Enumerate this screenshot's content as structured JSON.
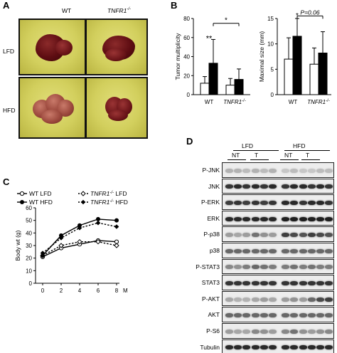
{
  "panel_a": {
    "letter": "A",
    "col_labels": [
      "WT",
      "TNFR1"
    ],
    "col_label_sup": "-/-",
    "row_labels": [
      "LFD",
      "HFD"
    ]
  },
  "panel_b": {
    "letter": "B",
    "chart_data": [
      {
        "type": "bar",
        "categories": [
          "WT",
          "TNFR1-/-"
        ],
        "ylabel": "Tumor multiplicity",
        "ylim": [
          0,
          80
        ],
        "yticks": [
          0,
          20,
          40,
          60,
          80
        ],
        "series": [
          {
            "values": [
              12,
              10
            ],
            "errors": [
              7,
              7
            ],
            "fill": "white"
          },
          {
            "values": [
              33,
              16
            ],
            "errors": [
              25,
              11
            ],
            "fill": "black"
          }
        ],
        "annotations": [
          "**",
          "*"
        ]
      },
      {
        "type": "bar",
        "categories": [
          "WT",
          "TNFR1-/-"
        ],
        "ylabel": "Maximal size (mm)",
        "ylim": [
          0,
          15
        ],
        "yticks": [
          0,
          5,
          10,
          15
        ],
        "series": [
          {
            "values": [
              7,
              6
            ],
            "errors": [
              4.2,
              3.2
            ],
            "fill": "white"
          },
          {
            "values": [
              11.5,
              8.2
            ],
            "errors": [
              3.5,
              4.2
            ],
            "fill": "black"
          }
        ],
        "annotations": [
          "*",
          "P=0.06"
        ]
      }
    ]
  },
  "panel_c": {
    "letter": "C",
    "chart_data": {
      "type": "line",
      "x": [
        0,
        2,
        4,
        6,
        8
      ],
      "xlabel_suffix": "M",
      "ylabel": "Body wt (g)",
      "ylim": [
        0,
        60
      ],
      "yticks": [
        0,
        10,
        20,
        30,
        40,
        50,
        60
      ],
      "series": [
        {
          "name": "WT LFD",
          "values": [
            21,
            28,
            31,
            34,
            33
          ],
          "marker": "open-circle",
          "line": "solid"
        },
        {
          "name": "TNFR1-/- LFD",
          "values": [
            22,
            30,
            33,
            33,
            30
          ],
          "marker": "open-diamond",
          "line": "dashed"
        },
        {
          "name": "WT HFD",
          "values": [
            22,
            38,
            46,
            51,
            50
          ],
          "marker": "filled-circle",
          "line": "solid"
        },
        {
          "name": "TNFR1-/- HFD",
          "values": [
            24,
            36,
            44,
            48,
            45
          ],
          "marker": "filled-diamond",
          "line": "dashed"
        }
      ],
      "legend": [
        "WT LFD",
        "TNFR1",
        "-/-",
        " LFD",
        "WT HFD",
        "TNFR1",
        "-/-",
        " HFD"
      ]
    }
  },
  "panel_d": {
    "letter": "D",
    "groups": [
      "LFD",
      "HFD"
    ],
    "subgroups": [
      "NT",
      "T",
      "NT",
      "T"
    ],
    "rows": [
      "P-JNK",
      "JNK",
      "P-ERK",
      "ERK",
      "P-p38",
      "p38",
      "P-STAT3",
      "STAT3",
      "P-AKT",
      "AKT",
      "P-S6",
      "Tubulin"
    ]
  }
}
